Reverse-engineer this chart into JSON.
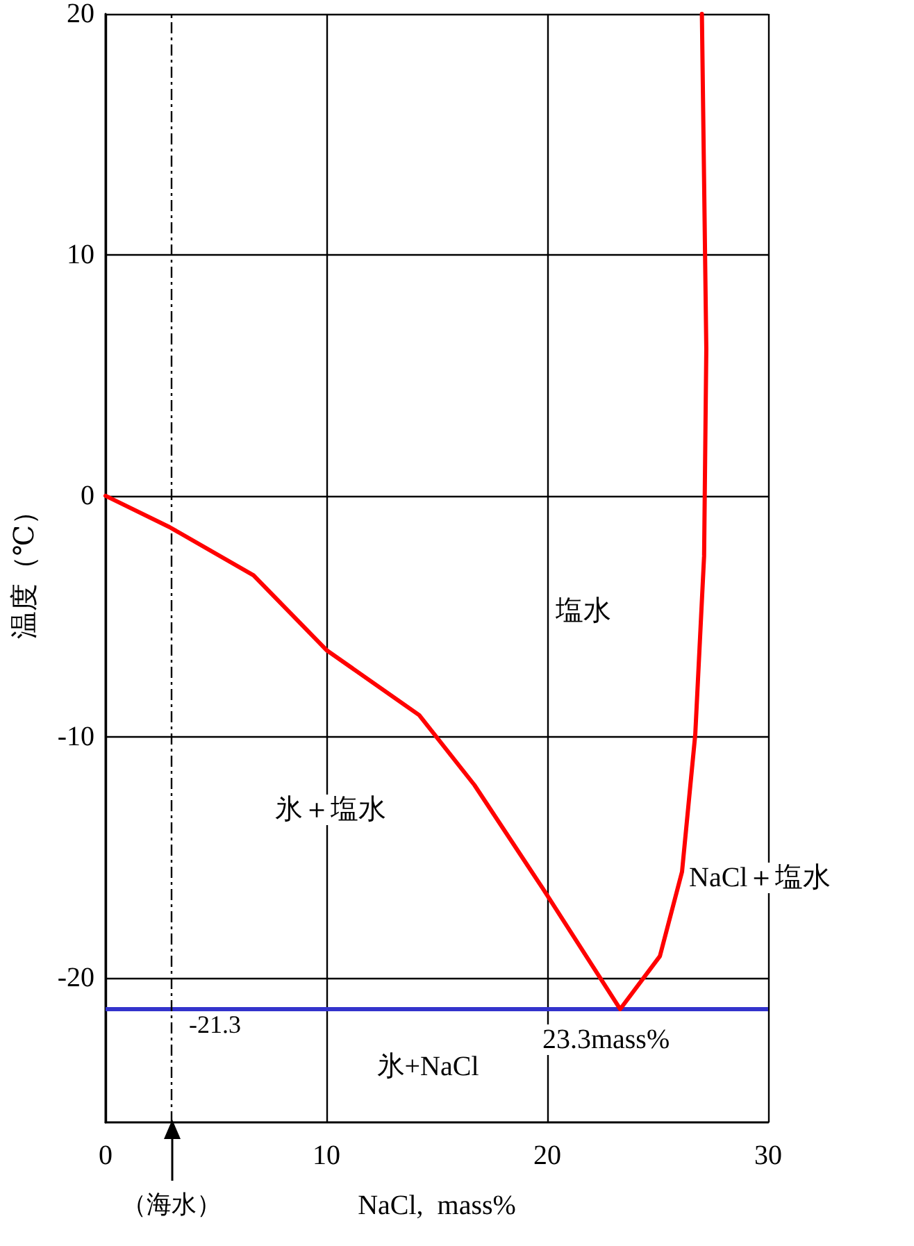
{
  "chart_data": {
    "type": "line",
    "xlabel": "NaCl,  mass%",
    "ylabel": "温度（℃）",
    "xlim": [
      0,
      30
    ],
    "xticks": [
      0,
      10,
      20,
      30
    ],
    "ylim": [
      -26,
      20
    ],
    "yticks": [
      -20,
      -10,
      0,
      10,
      20
    ],
    "grid": true,
    "marker": "none",
    "line_style": "solid",
    "series": [
      {
        "color": "#ff0000",
        "x": [
          0,
          2.9,
          6.7,
          10,
          14.2,
          16.7,
          19.8,
          23.3,
          25.1,
          26.1,
          26.7,
          27.1,
          27.2,
          27
        ],
        "values": [
          0,
          -1.3,
          -3.3,
          -6.4,
          -9.1,
          -12,
          -16.3,
          -21.3,
          -19.1,
          -15.6,
          -9.9,
          -2.5,
          6.1,
          20
        ]
      }
    ],
    "ref_lines": [
      {
        "axis": "y",
        "value": -21.3,
        "label": "-21.3",
        "color": "#3333cc",
        "line_style": "solid"
      },
      {
        "axis": "x",
        "value": 3,
        "label": "（海水）",
        "color": "#000000",
        "line_style": "dashed"
      }
    ],
    "annotations": [
      "塩水",
      "氷＋塩水",
      "NaCl＋塩水",
      "氷+NaCl",
      {
        "text": "23.3mass%",
        "x": 23.3,
        "y": -21.3
      }
    ]
  }
}
